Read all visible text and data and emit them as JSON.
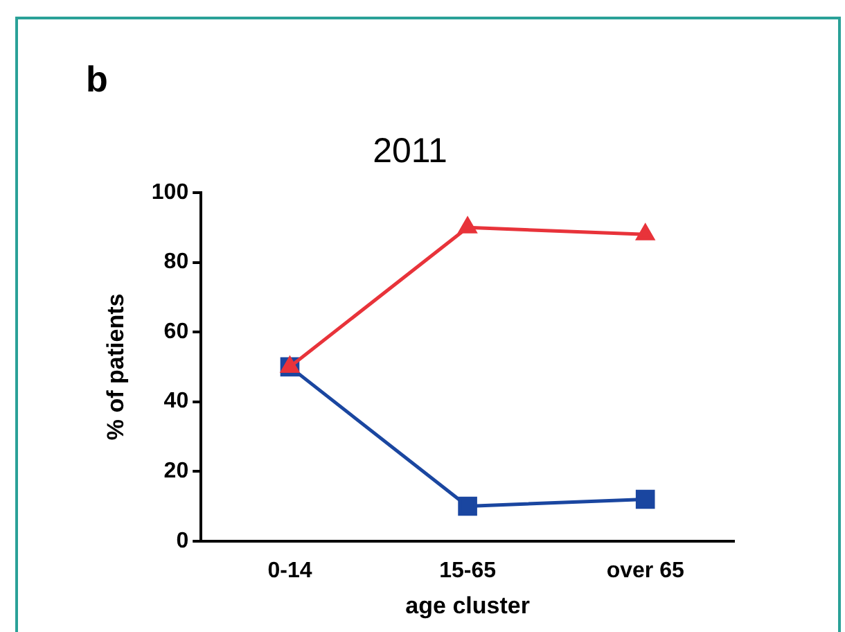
{
  "chart_data": {
    "type": "line",
    "title": "2011",
    "xlabel": "age cluster",
    "ylabel": "% of patients",
    "annotations": [
      "b"
    ],
    "categories": [
      "0-14",
      "15-65",
      "over 65"
    ],
    "series": [
      {
        "color": "#e8333a",
        "values": [
          50,
          90,
          88
        ],
        "marker": "triangle"
      },
      {
        "color": "#1a46a0",
        "values": [
          50,
          10,
          12
        ],
        "marker": "square"
      }
    ],
    "ylim": [
      0,
      100
    ],
    "yticks": [
      0,
      20,
      40,
      60,
      80,
      100
    ],
    "grid": false,
    "legend": false
  }
}
